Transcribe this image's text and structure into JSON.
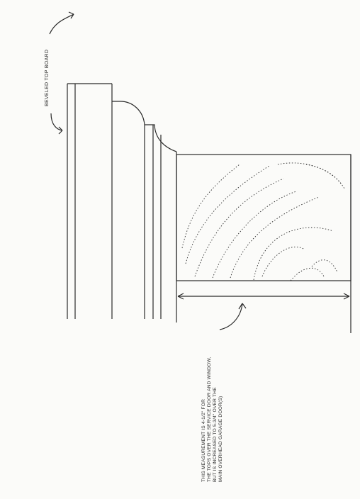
{
  "labels": {
    "beveled_top_board": "Beveled top board"
  },
  "note": {
    "lines": [
      "This measurement is 4-1/2\" for",
      "the tops over the service door and window,",
      "but is increased to 5-3/4\" over the",
      "main overhead garage door(s)"
    ]
  },
  "colors": {
    "ink": "#2a2a2a",
    "paper": "#fbfbf9"
  }
}
